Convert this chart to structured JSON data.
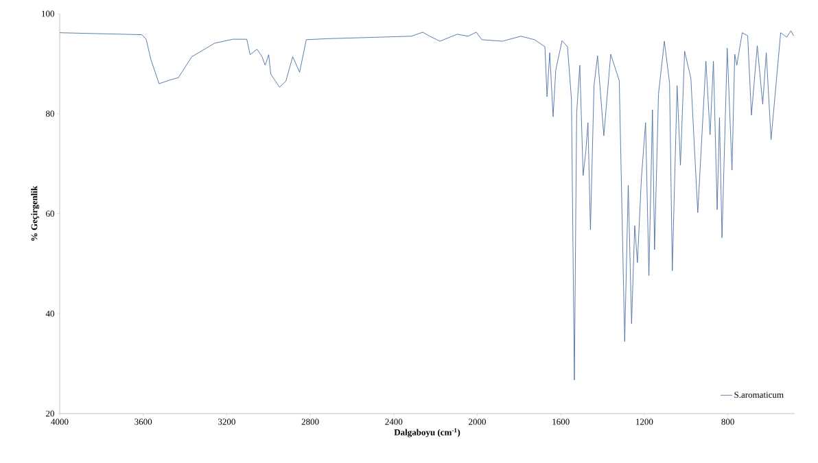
{
  "chart_data": {
    "type": "line",
    "xlabel": "Dalgaboyu (cm$^{-1}$)",
    "ylabel": "% Geçirgenlik",
    "x": [
      4000,
      3606,
      3586,
      3563,
      3524,
      3475,
      3432,
      3367,
      3258,
      3170,
      3104,
      3088,
      3055,
      3032,
      3016,
      2999,
      2989,
      2947,
      2917,
      2884,
      2851,
      2819,
      2720,
      2316,
      2261,
      2228,
      2179,
      2096,
      2044,
      2005,
      1978,
      1880,
      1791,
      1726,
      1676,
      1666,
      1653,
      1637,
      1624,
      1594,
      1568,
      1549,
      1535,
      1524,
      1509,
      1493,
      1480,
      1470,
      1458,
      1441,
      1424,
      1394,
      1361,
      1320,
      1294,
      1277,
      1261,
      1246,
      1233,
      1214,
      1194,
      1178,
      1161,
      1151,
      1132,
      1104,
      1079,
      1066,
      1043,
      1027,
      1007,
      977,
      944,
      905,
      885,
      869,
      851,
      840,
      828,
      803,
      780,
      767,
      757,
      731,
      705,
      687,
      659,
      633,
      616,
      593,
      547,
      518,
      498,
      485
    ],
    "series": [
      {
        "name": "S.aromaticum",
        "color": "#4a6fa5",
        "values": [
          96.2,
          95.8,
          94.9,
          90.8,
          86.0,
          86.7,
          87.2,
          91.4,
          94.1,
          94.9,
          94.9,
          91.8,
          92.9,
          91.5,
          89.7,
          91.8,
          87.9,
          85.3,
          86.5,
          91.4,
          88.3,
          94.8,
          95.0,
          95.5,
          96.3,
          95.5,
          94.5,
          95.9,
          95.5,
          96.3,
          94.8,
          94.5,
          95.5,
          94.8,
          93.4,
          83.4,
          92.2,
          79.4,
          88.8,
          94.6,
          93.4,
          82.9,
          26.7,
          80.2,
          89.7,
          67.6,
          72.6,
          78.2,
          56.8,
          85.6,
          91.6,
          75.6,
          91.9,
          86.6,
          34.4,
          65.7,
          38.0,
          57.6,
          50.2,
          67.1,
          78.2,
          47.6,
          80.8,
          52.8,
          84.0,
          94.5,
          86.1,
          48.6,
          85.6,
          69.7,
          92.5,
          87.1,
          60.2,
          90.5,
          75.8,
          90.5,
          60.8,
          79.2,
          55.2,
          93.1,
          68.7,
          91.9,
          89.7,
          96.2,
          95.6,
          79.7,
          93.6,
          81.9,
          92.2,
          74.8,
          96.2,
          95.3,
          96.6,
          95.6
        ]
      }
    ],
    "xlim": [
      4000,
      480
    ],
    "ylim": [
      20,
      100
    ],
    "xticks": [
      4000,
      3600,
      3200,
      2800,
      2400,
      2000,
      1600,
      1200,
      800
    ],
    "yticks": [
      20,
      40,
      60,
      80,
      100
    ],
    "legend": "bottom right"
  }
}
